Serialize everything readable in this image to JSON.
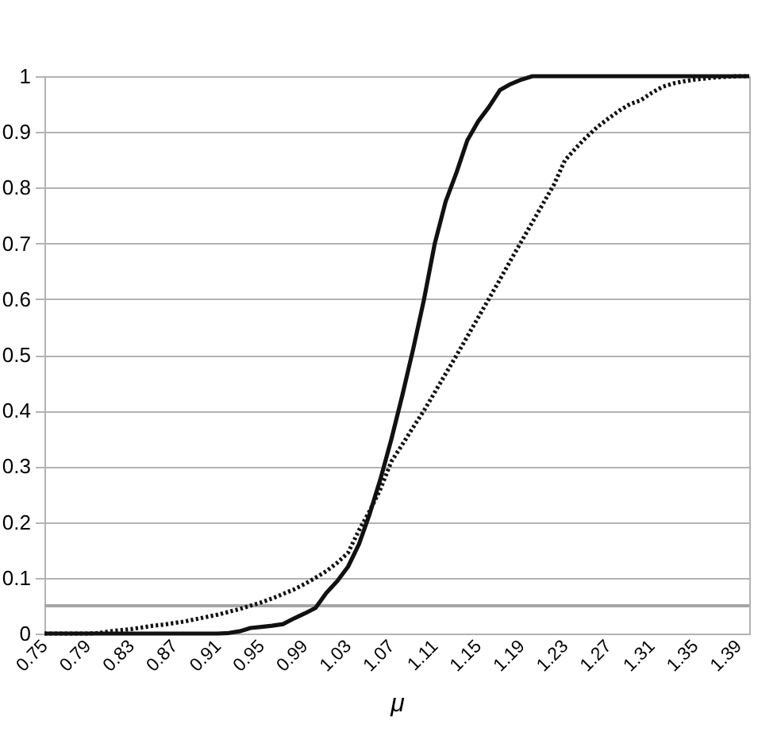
{
  "chart_data": {
    "type": "line",
    "xlabel": "μ",
    "x": [
      0.75,
      0.76,
      0.77,
      0.78,
      0.79,
      0.8,
      0.81,
      0.82,
      0.83,
      0.84,
      0.85,
      0.86,
      0.87,
      0.88,
      0.89,
      0.9,
      0.91,
      0.92,
      0.93,
      0.94,
      0.95,
      0.96,
      0.97,
      0.98,
      0.99,
      1.0,
      1.01,
      1.02,
      1.03,
      1.04,
      1.05,
      1.06,
      1.07,
      1.08,
      1.09,
      1.1,
      1.11,
      1.12,
      1.13,
      1.14,
      1.15,
      1.16,
      1.17,
      1.18,
      1.19,
      1.2,
      1.21,
      1.22,
      1.23,
      1.24,
      1.25,
      1.26,
      1.27,
      1.28,
      1.29,
      1.3,
      1.31,
      1.32,
      1.33,
      1.34,
      1.35,
      1.36,
      1.37,
      1.38,
      1.39,
      1.4
    ],
    "series": [
      {
        "color": "#111111",
        "line_style": "solid",
        "values": [
          0,
          0,
          0,
          0,
          0,
          0,
          0,
          0,
          0,
          0,
          0,
          0,
          0,
          0,
          0,
          0,
          0,
          0.001,
          0.004,
          0.01,
          0.012,
          0.014,
          0.017,
          0.027,
          0.036,
          0.046,
          0.073,
          0.094,
          0.12,
          0.16,
          0.215,
          0.278,
          0.349,
          0.427,
          0.51,
          0.599,
          0.7,
          0.775,
          0.827,
          0.885,
          0.919,
          0.945,
          0.975,
          0.986,
          0.994,
          1,
          1,
          1,
          1,
          1,
          1,
          1,
          1,
          1,
          1,
          1,
          1,
          1,
          1,
          1,
          1,
          1,
          1,
          1,
          1,
          1
        ]
      },
      {
        "color": "#111111",
        "line_style": "dotted",
        "values": [
          0,
          0,
          0,
          0,
          0,
          0.001,
          0.004,
          0.006,
          0.008,
          0.011,
          0.014,
          0.016,
          0.019,
          0.022,
          0.026,
          0.03,
          0.034,
          0.039,
          0.044,
          0.05,
          0.056,
          0.063,
          0.071,
          0.079,
          0.089,
          0.1,
          0.112,
          0.127,
          0.145,
          0.185,
          0.22,
          0.26,
          0.309,
          0.339,
          0.37,
          0.4,
          0.433,
          0.466,
          0.499,
          0.533,
          0.567,
          0.601,
          0.635,
          0.67,
          0.704,
          0.738,
          0.772,
          0.806,
          0.849,
          0.871,
          0.891,
          0.909,
          0.924,
          0.938,
          0.95,
          0.957,
          0.97,
          0.981,
          0.987,
          0.991,
          0.994,
          0.996,
          0.998,
          0.999,
          1,
          1
        ]
      }
    ],
    "xlim": [
      0.75,
      1.4
    ],
    "xticks": [
      0.75,
      0.79,
      0.83,
      0.87,
      0.91,
      0.95,
      0.99,
      1.03,
      1.07,
      1.11,
      1.15,
      1.19,
      1.23,
      1.27,
      1.31,
      1.35,
      1.39
    ],
    "ylim": [
      0,
      1
    ],
    "yticks": [
      0,
      0.1,
      0.2,
      0.3,
      0.4,
      0.5,
      0.6,
      0.7,
      0.8,
      0.9,
      1
    ],
    "grid": "y",
    "ref_lines": [
      {
        "axis": "y",
        "value": 0.05,
        "color": "#a6a6a6"
      }
    ]
  }
}
